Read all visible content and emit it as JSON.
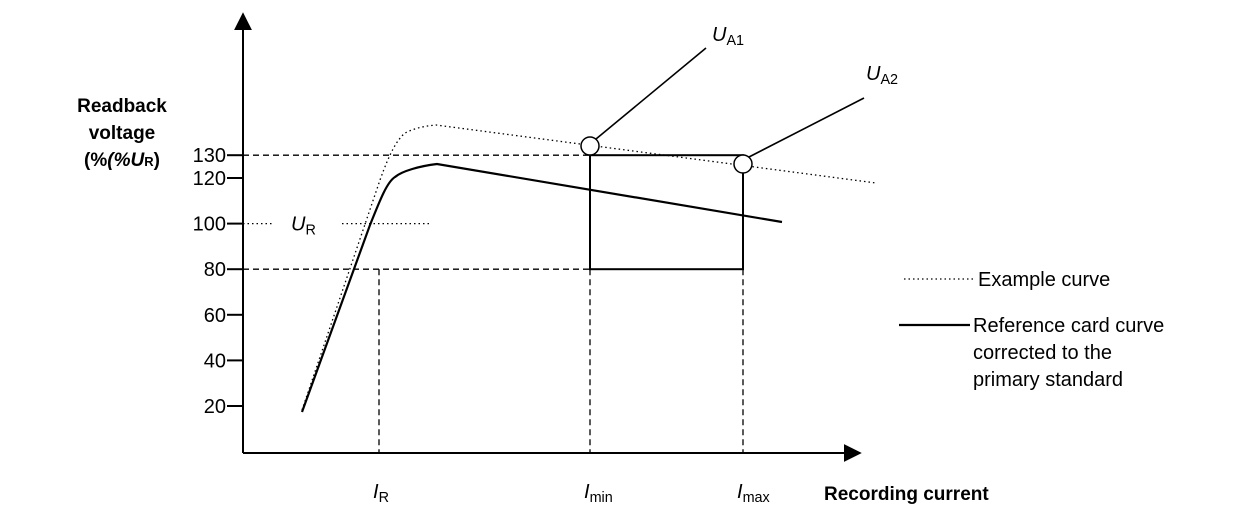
{
  "chart_data": {
    "type": "line",
    "ylabel": [
      "Readback",
      "voltage",
      "(%U",
      "R",
      ")"
    ],
    "xlabel": "Recording current",
    "y_ticks": [
      20,
      40,
      60,
      80,
      100,
      120,
      130
    ],
    "y_tick_labels": [
      "20",
      "40",
      "60",
      "80",
      "100",
      "120",
      "130"
    ],
    "x_markers": [
      {
        "id": "IR",
        "main": "I",
        "sub": "R"
      },
      {
        "id": "Imin",
        "main": "I",
        "sub": "min"
      },
      {
        "id": "Imax",
        "main": "I",
        "sub": "max"
      }
    ],
    "reference_level": {
      "main": "U",
      "sub": "R",
      "value": 100
    },
    "tolerance_window": {
      "x_from": "Imin",
      "x_to": "Imax",
      "y_min": 80,
      "y_max": 130
    },
    "series": [
      {
        "name": "Example curve",
        "style": "dotted"
      },
      {
        "name": "Reference card curve corrected to the primary standard",
        "style": "solid"
      }
    ],
    "annotations": [
      {
        "main": "U",
        "sub": "A1",
        "at": "Imin",
        "on": "Example curve"
      },
      {
        "main": "U",
        "sub": "A2",
        "at": "Imax",
        "on": "Example curve"
      }
    ],
    "legend": [
      {
        "style": "dotted",
        "lines": [
          "Example curve"
        ]
      },
      {
        "style": "solid",
        "lines": [
          "Reference card curve",
          "corrected to the",
          "primary standard"
        ]
      }
    ]
  }
}
